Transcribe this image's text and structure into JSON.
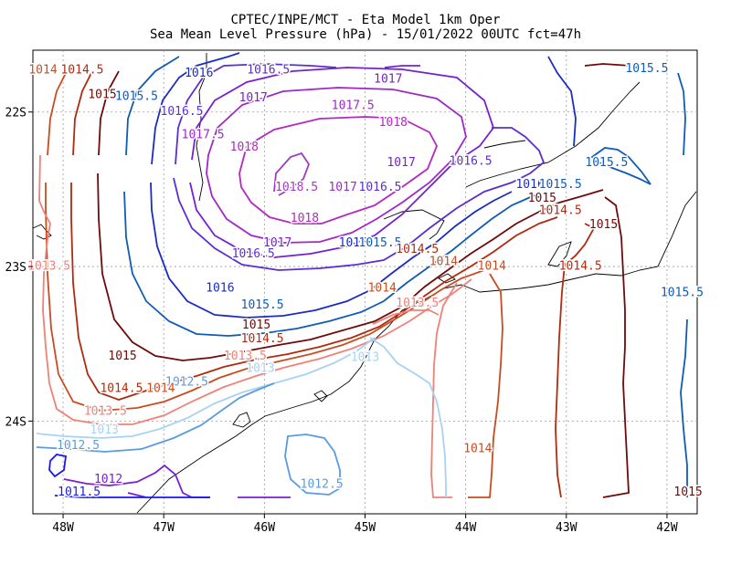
{
  "chart_data": {
    "type": "contour-map",
    "title": "CPTEC/INPE/MCT -  Eta Model 1km Oper",
    "subtitle": "Sea Mean Level Pressure (hPa) - 15/01/2022 00UTC fct=47h",
    "variable": "Sea Mean Level Pressure",
    "units": "hPa",
    "run": "15/01/2022 00UTC",
    "forecast": "fct=47h",
    "xlim": [
      -48.3,
      -41.7
    ],
    "ylim": [
      -24.6,
      -21.6
    ],
    "x_ticks": [
      {
        "value": -48,
        "label": "48W"
      },
      {
        "value": -47,
        "label": "47W"
      },
      {
        "value": -46,
        "label": "46W"
      },
      {
        "value": -45,
        "label": "45W"
      },
      {
        "value": -44,
        "label": "44W"
      },
      {
        "value": -43,
        "label": "43W"
      },
      {
        "value": -42,
        "label": "42W"
      }
    ],
    "y_ticks": [
      {
        "value": -22,
        "label": "22S"
      },
      {
        "value": -23,
        "label": "23S"
      },
      {
        "value": -24,
        "label": "24S"
      }
    ],
    "grid": true,
    "levels": [
      1011.5,
      1012,
      1012.5,
      1013,
      1013.5,
      1014,
      1014.5,
      1015,
      1015.5,
      1016,
      1016.5,
      1017,
      1017.5,
      1018,
      1018.5
    ],
    "level_colors": {
      "1011.5": "#1a1ae6",
      "1012": "#7a20d0",
      "1012.5": "#5a9be0",
      "1013": "#a8d2f5",
      "1013.5": "#f08078",
      "1014": "#c84c20",
      "1014.5": "#b02a10",
      "1015": "#6e0a0a",
      "1015.5": "#0f5bb5",
      "1016": "#1a2dc0",
      "1016.5": "#5a2ed2",
      "1017": "#7422d0",
      "1017.5": "#a028c8",
      "1018": "#b428c0",
      "1018.5": "#a03cc0"
    },
    "contour_labels": [
      {
        "level": "1014",
        "text": "1014",
        "lon": -48.2,
        "lat": -21.73
      },
      {
        "level": "1014.5",
        "text": "1014.5",
        "lon": -47.81,
        "lat": -21.73
      },
      {
        "level": "1015",
        "text": "1015",
        "lon": -47.61,
        "lat": -21.89
      },
      {
        "level": "1015.5",
        "text": "1015.5",
        "lon": -47.27,
        "lat": -21.9
      },
      {
        "level": "1016",
        "text": "1016",
        "lon": -46.65,
        "lat": -21.75
      },
      {
        "level": "1016.5",
        "text": "1016.5",
        "lon": -45.96,
        "lat": -21.73
      },
      {
        "level": "1017",
        "text": "1017",
        "lon": -44.77,
        "lat": -21.79
      },
      {
        "level": "1015.5",
        "text": "1015.5",
        "lon": -42.2,
        "lat": -21.72
      },
      {
        "level": "1016.5",
        "text": "1016.5",
        "lon": -46.82,
        "lat": -22.0
      },
      {
        "level": "1017",
        "text": "1017",
        "lon": -46.11,
        "lat": -21.91
      },
      {
        "level": "1017.5",
        "text": "1017.5",
        "lon": -45.12,
        "lat": -21.96
      },
      {
        "level": "1018",
        "text": "1018",
        "lon": -44.72,
        "lat": -22.07
      },
      {
        "level": "1017.5",
        "text": "1017.5",
        "lon": -46.61,
        "lat": -22.15
      },
      {
        "level": "1018",
        "text": "1018",
        "lon": -46.2,
        "lat": -22.23
      },
      {
        "level": "1017",
        "text": "1017",
        "lon": -44.64,
        "lat": -22.33
      },
      {
        "level": "1016.5",
        "text": "1016.5",
        "lon": -43.95,
        "lat": -22.32
      },
      {
        "level": "1015.5",
        "text": "1015.5",
        "lon": -42.6,
        "lat": -22.33
      },
      {
        "level": "1018.5",
        "text": "1018.5",
        "lon": -45.68,
        "lat": -22.49
      },
      {
        "level": "1017.5",
        "text": "1017.5",
        "lon": -45.15,
        "lat": -22.49
      },
      {
        "level": "1016.5",
        "text": "1016.5",
        "lon": -44.85,
        "lat": -22.49
      },
      {
        "level": "1016",
        "text": "1016",
        "lon": -43.36,
        "lat": -22.47
      },
      {
        "level": "1015.5",
        "text": "1015.5",
        "lon": -43.06,
        "lat": -22.47
      },
      {
        "level": "1015",
        "text": "1015",
        "lon": -43.24,
        "lat": -22.56
      },
      {
        "level": "1014.5",
        "text": "1014.5",
        "lon": -43.06,
        "lat": -22.64
      },
      {
        "level": "1015",
        "text": "1015",
        "lon": -42.63,
        "lat": -22.73
      },
      {
        "level": "1018",
        "text": "1018",
        "lon": -45.6,
        "lat": -22.69
      },
      {
        "level": "1017",
        "text": "1017",
        "lon": -45.87,
        "lat": -22.85
      },
      {
        "level": "1016.5",
        "text": "1016.5",
        "lon": -46.11,
        "lat": -22.92
      },
      {
        "level": "1016",
        "text": "1016",
        "lon": -45.12,
        "lat": -22.85
      },
      {
        "level": "1015.5",
        "text": "1015.5",
        "lon": -44.85,
        "lat": -22.85
      },
      {
        "level": "1014.5",
        "text": "1014.5",
        "lon": -44.48,
        "lat": -22.89
      },
      {
        "level": "1014",
        "text": "1014",
        "lon": -44.22,
        "lat": -22.97
      },
      {
        "level": "1014.5",
        "text": "1014.5",
        "lon": -42.86,
        "lat": -23.0
      },
      {
        "level": "1013.5",
        "text": "1013.5",
        "lon": -48.14,
        "lat": -23.0
      },
      {
        "level": "1014",
        "text": "1014",
        "lon": -43.74,
        "lat": -23.0
      },
      {
        "level": "1014",
        "text": "1014",
        "lon": -44.83,
        "lat": -23.14
      },
      {
        "level": "1013.5",
        "text": "1013.5",
        "lon": -44.48,
        "lat": -23.24
      },
      {
        "level": "1016",
        "text": "1016",
        "lon": -46.44,
        "lat": -23.14
      },
      {
        "level": "1015.5",
        "text": "1015.5",
        "lon": -46.02,
        "lat": -23.25
      },
      {
        "level": "1015.5",
        "text": "1015.5",
        "lon": -41.85,
        "lat": -23.17
      },
      {
        "level": "1015",
        "text": "1015",
        "lon": -46.08,
        "lat": -23.38
      },
      {
        "level": "1014.5",
        "text": "1014.5",
        "lon": -46.02,
        "lat": -23.47
      },
      {
        "level": "1013.5",
        "text": "1013.5",
        "lon": -46.19,
        "lat": -23.58
      },
      {
        "level": "1015",
        "text": "1015",
        "lon": -47.41,
        "lat": -23.58
      },
      {
        "level": "1013",
        "text": "1013",
        "lon": -45.0,
        "lat": -23.59
      },
      {
        "level": "1013",
        "text": "1013",
        "lon": -46.04,
        "lat": -23.66
      },
      {
        "level": "1012.5",
        "text": "1012.5",
        "lon": -46.77,
        "lat": -23.75
      },
      {
        "level": "1014.5",
        "text": "1014.5",
        "lon": -47.42,
        "lat": -23.79
      },
      {
        "level": "1014",
        "text": "1014",
        "lon": -47.03,
        "lat": -23.79
      },
      {
        "level": "1013.5",
        "text": "1013.5",
        "lon": -47.58,
        "lat": -23.94
      },
      {
        "level": "1013",
        "text": "1013",
        "lon": -47.59,
        "lat": -24.06
      },
      {
        "level": "1012.5",
        "text": "1012.5",
        "lon": -47.85,
        "lat": -24.16
      },
      {
        "level": "1014",
        "text": "1014",
        "lon": -43.88,
        "lat": -24.18
      },
      {
        "level": "1012",
        "text": "1012",
        "lon": -47.55,
        "lat": -24.38
      },
      {
        "level": "1012.5",
        "text": "1012.5",
        "lon": -45.43,
        "lat": -24.41
      },
      {
        "level": "1011.5",
        "text": "1011.5",
        "lon": -47.84,
        "lat": -24.46
      },
      {
        "level": "1015",
        "text": "1015",
        "lon": -41.79,
        "lat": -24.46
      }
    ]
  }
}
